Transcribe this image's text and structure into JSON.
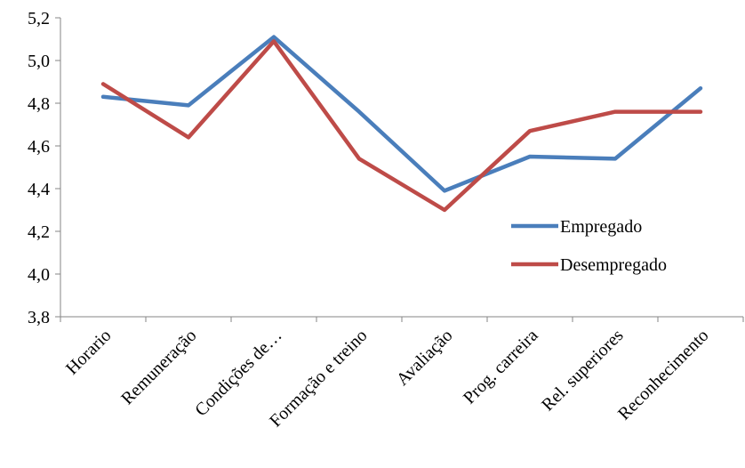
{
  "chart_data": {
    "type": "line",
    "title": "",
    "xlabel": "",
    "ylabel": "",
    "categories": [
      "Horario",
      "Remuneração",
      "Condições de…",
      "Formação e treino",
      "Avaliação",
      "Prog. carreira",
      "Rel. superiores",
      "Reconhecimento"
    ],
    "ylim": [
      3.8,
      5.2
    ],
    "yticks": [
      "3,8",
      "4,0",
      "4,2",
      "4,4",
      "4,6",
      "4,8",
      "5,0",
      "5,2"
    ],
    "grid": false,
    "legend_position": "right",
    "series": [
      {
        "name": "Empregado",
        "color": "#4a7ebb",
        "values": [
          4.83,
          4.79,
          5.11,
          4.76,
          4.39,
          4.55,
          4.54,
          4.87
        ]
      },
      {
        "name": "Desempregado",
        "color": "#be4b48",
        "values": [
          4.89,
          4.64,
          5.09,
          4.54,
          4.3,
          4.67,
          4.76,
          4.76
        ]
      }
    ]
  }
}
